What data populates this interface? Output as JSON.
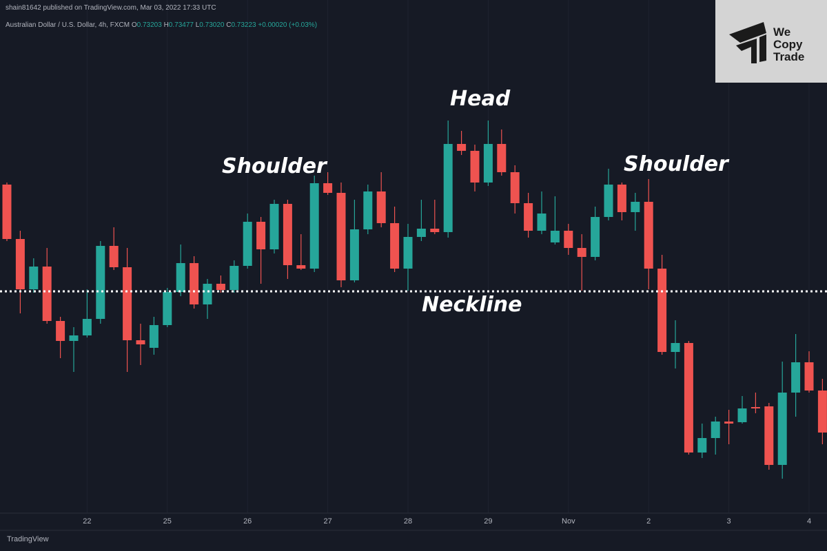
{
  "header": {
    "published": "shain81642 published on TradingView.com, Mar 03, 2022 17:33 UTC",
    "symbol": "Australian Dollar / U.S. Dollar, 4h, FXCM",
    "ohlc": [
      {
        "label": "O",
        "value": "0.73203"
      },
      {
        "label": "H",
        "value": "0.73477"
      },
      {
        "label": "L",
        "value": "0.73020"
      },
      {
        "label": "C",
        "value": "0.73223"
      }
    ],
    "change": "+0.00020 (+0.03%)"
  },
  "logo": {
    "lines": [
      "We",
      "Copy",
      "Trade"
    ]
  },
  "footer": "TradingView",
  "chart_data": {
    "type": "candlestick",
    "up_color": "#26a69a",
    "down_color": "#ef5350",
    "ylim": [
      0.71275,
      0.75
    ],
    "categories": [
      null,
      null,
      null,
      null,
      null,
      null,
      "22",
      null,
      null,
      null,
      null,
      null,
      "25",
      null,
      null,
      null,
      null,
      null,
      "26",
      null,
      null,
      null,
      null,
      null,
      "27",
      null,
      null,
      null,
      null,
      null,
      "28",
      null,
      null,
      null,
      null,
      null,
      "29",
      null,
      null,
      null,
      null,
      null,
      "Nov",
      null,
      null,
      null,
      null,
      null,
      "2",
      null,
      null,
      null,
      null,
      null,
      "3",
      null,
      null,
      null,
      null,
      null,
      "4",
      null
    ],
    "open": [
      0.7366,
      0.73265,
      0.729,
      0.73065,
      0.7267,
      0.72525,
      0.72565,
      0.72685,
      0.73215,
      0.7306,
      0.7253,
      0.72475,
      0.7264,
      0.7288,
      0.7309,
      0.7279,
      0.7294,
      0.72895,
      0.7307,
      0.7339,
      0.7319,
      0.7352,
      0.73075,
      0.7305,
      0.7367,
      0.736,
      0.72965,
      0.73335,
      0.7361,
      0.7338,
      0.7305,
      0.7328,
      0.7334,
      0.73315,
      0.73955,
      0.73905,
      0.73675,
      0.73955,
      0.7375,
      0.73525,
      0.73325,
      0.7324,
      0.73325,
      0.732,
      0.73135,
      0.73425,
      0.7366,
      0.7346,
      0.73535,
      0.7305,
      0.72445,
      0.7251,
      0.71715,
      0.7182,
      0.7194,
      0.71935,
      0.72045,
      0.7205,
      0.71625,
      0.7215,
      0.7237,
      0.72165
    ],
    "high": [
      0.73675,
      0.73325,
      0.73125,
      0.732,
      0.727,
      0.72625,
      0.729,
      0.7325,
      0.7335,
      0.732,
      0.7265,
      0.727,
      0.7291,
      0.73225,
      0.7314,
      0.72975,
      0.73,
      0.7311,
      0.7345,
      0.73425,
      0.7355,
      0.7355,
      0.733,
      0.73725,
      0.7375,
      0.73675,
      0.7355,
      0.7366,
      0.7375,
      0.735,
      0.73375,
      0.7355,
      0.7355,
      0.74125,
      0.7405,
      0.7395,
      0.74125,
      0.7406,
      0.738,
      0.736,
      0.7361,
      0.73575,
      0.73375,
      0.733,
      0.735,
      0.73775,
      0.73675,
      0.736,
      0.737,
      0.7315,
      0.72675,
      0.72525,
      0.71925,
      0.71975,
      0.72025,
      0.72125,
      0.7215,
      0.72075,
      0.72375,
      0.72575,
      0.7245,
      0.7225
    ],
    "low": [
      0.7325,
      0.72725,
      0.72875,
      0.7265,
      0.724,
      0.723,
      0.7255,
      0.7265,
      0.7304,
      0.723,
      0.7235,
      0.72425,
      0.72625,
      0.7285,
      0.7276,
      0.72685,
      0.72875,
      0.72875,
      0.7305,
      0.7294,
      0.7316,
      0.72975,
      0.7304,
      0.73025,
      0.73585,
      0.72915,
      0.7295,
      0.733,
      0.7335,
      0.73025,
      0.7289,
      0.7325,
      0.733,
      0.73275,
      0.73875,
      0.7361,
      0.7365,
      0.73725,
      0.7345,
      0.73275,
      0.733,
      0.73225,
      0.7315,
      0.7289,
      0.7311,
      0.734,
      0.734,
      0.73325,
      0.729,
      0.72425,
      0.72325,
      0.717,
      0.71675,
      0.717,
      0.71775,
      0.71925,
      0.72,
      0.7159,
      0.71525,
      0.71975,
      0.7215,
      0.71775
    ],
    "close": [
      0.73265,
      0.729,
      0.73065,
      0.7267,
      0.72525,
      0.72565,
      0.72685,
      0.73215,
      0.7306,
      0.7253,
      0.725,
      0.7264,
      0.7288,
      0.7309,
      0.7279,
      0.7294,
      0.72895,
      0.7307,
      0.7339,
      0.7319,
      0.7352,
      0.73075,
      0.7305,
      0.7367,
      0.736,
      0.72965,
      0.73335,
      0.7361,
      0.7338,
      0.7305,
      0.7328,
      0.7334,
      0.73315,
      0.73955,
      0.73905,
      0.73675,
      0.73955,
      0.7375,
      0.73525,
      0.73325,
      0.7345,
      0.73325,
      0.732,
      0.73135,
      0.73425,
      0.7366,
      0.7346,
      0.73535,
      0.7305,
      0.72445,
      0.7251,
      0.71715,
      0.7182,
      0.7194,
      0.71925,
      0.72035,
      0.72035,
      0.71625,
      0.7215,
      0.7237,
      0.72165,
      0.7186
    ],
    "neckline": 0.72885,
    "annotations": {
      "left": "Shoulder",
      "head": "Head",
      "right": "Shoulder",
      "neckline": "Neckline"
    }
  }
}
